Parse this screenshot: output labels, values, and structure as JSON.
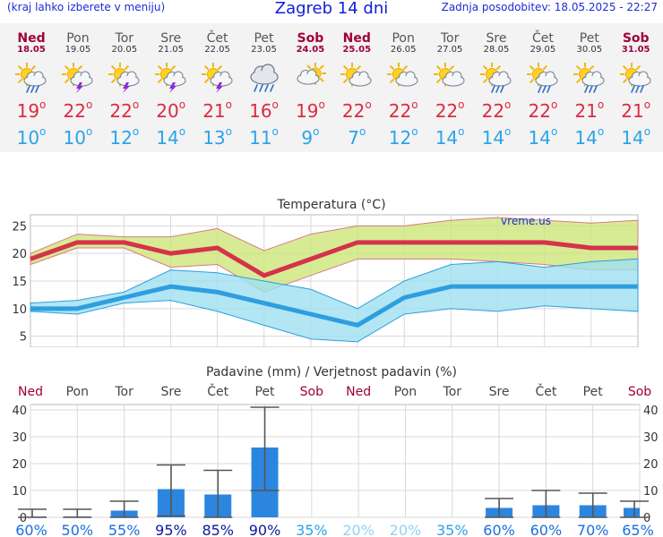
{
  "header": {
    "hint": "(kraj lahko izberete v meniju)",
    "title": "Zagreb 14 dni",
    "updated": "Zadnja posodobitev: 18.05.2025 - 22:27"
  },
  "days": [
    {
      "name": "Ned",
      "date": "18.05",
      "weekend": true,
      "icon": "sun-cloud-rain-icon",
      "max": "19",
      "min": "10"
    },
    {
      "name": "Pon",
      "date": "19.05",
      "weekend": false,
      "icon": "sun-thunderstorm-icon",
      "max": "22",
      "min": "10"
    },
    {
      "name": "Tor",
      "date": "20.05",
      "weekend": false,
      "icon": "sun-thunderstorm-icon",
      "max": "22",
      "min": "12"
    },
    {
      "name": "Sre",
      "date": "21.05",
      "weekend": false,
      "icon": "sun-thunderstorm-icon",
      "max": "20",
      "min": "14"
    },
    {
      "name": "Čet",
      "date": "22.05",
      "weekend": false,
      "icon": "sun-thunderstorm-icon",
      "max": "21",
      "min": "13"
    },
    {
      "name": "Pet",
      "date": "23.05",
      "weekend": false,
      "icon": "cloud-rain-icon",
      "max": "16",
      "min": "11"
    },
    {
      "name": "Sob",
      "date": "24.05",
      "weekend": true,
      "icon": "sun-behind-cloud-icon",
      "max": "19",
      "min": "9"
    },
    {
      "name": "Ned",
      "date": "25.05",
      "weekend": true,
      "icon": "sun-cloud-icon",
      "max": "22",
      "min": "7"
    },
    {
      "name": "Pon",
      "date": "26.05",
      "weekend": false,
      "icon": "sun-cloud-icon",
      "max": "22",
      "min": "12"
    },
    {
      "name": "Tor",
      "date": "27.05",
      "weekend": false,
      "icon": "sun-cloud-icon",
      "max": "22",
      "min": "14"
    },
    {
      "name": "Sre",
      "date": "28.05",
      "weekend": false,
      "icon": "sun-cloud-rain-icon",
      "max": "22",
      "min": "14"
    },
    {
      "name": "Čet",
      "date": "29.05",
      "weekend": false,
      "icon": "sun-cloud-rain-icon",
      "max": "22",
      "min": "14"
    },
    {
      "name": "Pet",
      "date": "30.05",
      "weekend": false,
      "icon": "sun-cloud-rain-icon",
      "max": "21",
      "min": "14"
    },
    {
      "name": "Sob",
      "date": "31.05",
      "weekend": true,
      "icon": "sun-cloud-rain-icon",
      "max": "21",
      "min": "14"
    }
  ],
  "chart_data": [
    {
      "type": "line",
      "title": "Temperatura (°C)",
      "watermark": "vreme.us",
      "ylim": [
        3,
        27
      ],
      "yticks": [
        5,
        10,
        15,
        20,
        25
      ],
      "grid": true,
      "series": [
        {
          "role": "max",
          "color": "#d4334a",
          "values": [
            19,
            22,
            22,
            20,
            21,
            16,
            19,
            22,
            22,
            22,
            22,
            22,
            21,
            21
          ],
          "band_low": [
            18,
            21,
            21,
            17.5,
            18,
            13,
            16,
            19,
            19,
            19,
            18.5,
            18,
            17,
            17
          ],
          "band_high": [
            20,
            23.5,
            23,
            23,
            24.5,
            20.5,
            23.5,
            25,
            25,
            26,
            26.5,
            26,
            25.5,
            26
          ],
          "band_color": "#cde67a"
        },
        {
          "role": "min",
          "color": "#2e9ee0",
          "values": [
            10,
            10,
            12,
            14,
            13,
            11,
            9,
            7,
            12,
            14,
            14,
            14,
            14,
            14
          ],
          "band_low": [
            9.5,
            9,
            11,
            11.5,
            9.5,
            7,
            4.5,
            4,
            9,
            10,
            9.5,
            10.5,
            10,
            9.5
          ],
          "band_high": [
            11,
            11.5,
            13,
            17,
            16.5,
            15,
            13.5,
            10,
            15,
            18,
            18.5,
            17.5,
            18.5,
            19
          ],
          "band_color": "#9fe0f0"
        }
      ]
    },
    {
      "type": "bar",
      "title": "Padavine (mm) / Verjetnost padavin (%)",
      "ylim": [
        0,
        42
      ],
      "yticks": [
        0,
        10,
        20,
        30,
        40
      ],
      "categories": [
        "Ned",
        "Pon",
        "Tor",
        "Sre",
        "Čet",
        "Pet",
        "Sob",
        "Ned",
        "Pon",
        "Tor",
        "Sre",
        "Čet",
        "Pet",
        "Sob"
      ],
      "weekend": [
        true,
        false,
        false,
        false,
        false,
        false,
        true,
        true,
        false,
        false,
        false,
        false,
        false,
        true
      ],
      "values": [
        0.3,
        0.3,
        2.5,
        10.5,
        8.5,
        26,
        0,
        0,
        0,
        0,
        3.5,
        4.5,
        4.5,
        3.5
      ],
      "err_low": [
        0,
        0,
        0,
        0.5,
        0,
        10,
        0,
        0,
        0,
        0,
        0,
        0,
        0,
        0
      ],
      "err_high": [
        3,
        3,
        6,
        19.5,
        17.5,
        41,
        0,
        0,
        0,
        0,
        7,
        10,
        9,
        6
      ],
      "probability": [
        "60%",
        "50%",
        "55%",
        "95%",
        "85%",
        "90%",
        "35%",
        "20%",
        "20%",
        "35%",
        "60%",
        "60%",
        "70%",
        "65%"
      ],
      "prob_colors": [
        "#1a6fe0",
        "#1a6fe0",
        "#1a6fe0",
        "#0a1a9e",
        "#0a1a9e",
        "#0a1a9e",
        "#2aa3ea",
        "#8fd4f4",
        "#8fd4f4",
        "#2aa3ea",
        "#1a6fe0",
        "#1a6fe0",
        "#1a6fe0",
        "#1a6fe0"
      ],
      "bar_color": "#2c86e0"
    }
  ]
}
